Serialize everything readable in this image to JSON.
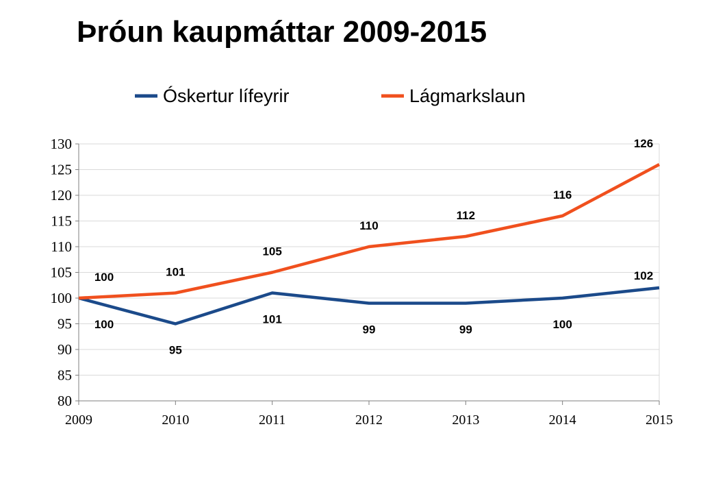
{
  "page": {
    "title": "Þróun kaupmáttar 2009-2015"
  },
  "chart_data": {
    "type": "line",
    "title": "Þróun kaupmáttar 2009-2015",
    "xlabel": "",
    "ylabel": "",
    "categories": [
      "2009",
      "2010",
      "2011",
      "2012",
      "2013",
      "2014",
      "2015"
    ],
    "ylim": [
      80,
      130
    ],
    "yticks": [
      80,
      85,
      90,
      95,
      100,
      105,
      110,
      115,
      120,
      125,
      130
    ],
    "grid": "horizontal",
    "legend": "top",
    "series": [
      {
        "name": "Óskertur lífeyrir",
        "color": "#1B4A8A",
        "values": [
          100,
          95,
          101,
          99,
          99,
          100,
          102
        ],
        "labels": [
          "100",
          "95",
          "101",
          "99",
          "99",
          "100",
          "102"
        ]
      },
      {
        "name": "Lágmarkslaun",
        "color": "#F0501E",
        "values": [
          100,
          101,
          105,
          110,
          112,
          116,
          126
        ],
        "labels": [
          "100",
          "101",
          "105",
          "110",
          "112",
          "116",
          "126"
        ]
      }
    ]
  }
}
